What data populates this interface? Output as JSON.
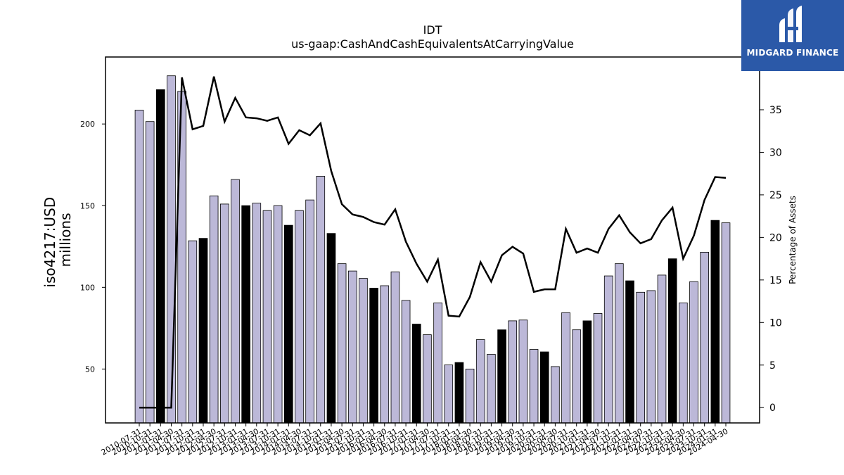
{
  "chart_data": {
    "type": "bar",
    "title": "IDT",
    "subtitle": "us-gaap:CashAndCashEquivalentsAtCarryingValue",
    "ylabel": "iso4217:USD\nmillions",
    "y2label": "Percentage of Assets",
    "ylim": [
      17,
      241
    ],
    "y2lim": [
      -1.8,
      41.2
    ],
    "yticks": [
      50,
      100,
      150,
      200
    ],
    "y2ticks": [
      0,
      5,
      10,
      15,
      20,
      25,
      30,
      35
    ],
    "grid": false,
    "colors": {
      "bar_default": "#bcb8d8",
      "bar_highlight": "#000000",
      "line": "#000000"
    },
    "categories": [
      "2010-07-31",
      "2010-10-31",
      "2011-01-31",
      "2011-04-30",
      "2011-07-31",
      "2011-10-31",
      "2012-01-31",
      "2012-04-30",
      "2012-07-31",
      "2012-10-31",
      "2013-01-31",
      "2013-04-30",
      "2013-07-31",
      "2013-10-31",
      "2014-01-31",
      "2014-04-30",
      "2014-07-31",
      "2014-10-31",
      "2015-01-31",
      "2015-04-30",
      "2015-07-31",
      "2015-10-31",
      "2016-01-31",
      "2016-04-30",
      "2016-07-31",
      "2016-10-31",
      "2017-01-31",
      "2017-04-30",
      "2017-07-31",
      "2017-10-31",
      "2018-01-31",
      "2018-04-30",
      "2018-07-31",
      "2018-10-31",
      "2019-01-31",
      "2019-04-30",
      "2019-07-31",
      "2019-10-31",
      "2020-01-31",
      "2020-04-30",
      "2020-07-31",
      "2020-10-31",
      "2021-01-31",
      "2021-04-30",
      "2021-07-31",
      "2021-10-31",
      "2022-01-31",
      "2022-04-30",
      "2022-07-31",
      "2022-10-31",
      "2023-01-31",
      "2023-04-30",
      "2023-07-31",
      "2023-10-31",
      "2024-01-31",
      "2024-04-30"
    ],
    "xtick_labels_visible": [
      "2010-07-31",
      "2010-10-31",
      "2011-01-31",
      "2011-04-30",
      "2011-07-31",
      "2011-10-31",
      "2012-01-31",
      "2012-04-30",
      "2012-07-31",
      "2012-10-31",
      "2013-01-31",
      "2013-04-30",
      "2013-07-31",
      "2013-10-31",
      "2014-01-31",
      "2014-04-30",
      "2014-07-31",
      "2014-10-31",
      "2015-01-31",
      "2015-04-30",
      "2015-07-31",
      "2015-10-31",
      "2016-01-31",
      "2016-04-30",
      "2016-07-31",
      "2016-10-31",
      "2017-01-31",
      "2017-04-30",
      "2017-07-31",
      "2017-10-31",
      "2018-01-31",
      "2018-04-30",
      "2018-07-31",
      "2018-10-31",
      "2019-01-31",
      "2019-04-30",
      "2019-07-31",
      "2019-10-31",
      "2020-01-31",
      "2020-04-30",
      "2020-07-31",
      "2020-10-31",
      "2021-01-31",
      "2021-04-30",
      "2021-07-31",
      "2021-10-31",
      "2022-01-31",
      "2022-04-30",
      "2022-07-31",
      "2022-10-31",
      "2023-01-31",
      "2023-04-30",
      "2023-07-31",
      "2023-10-31",
      "2024-01-31",
      "2024-04-30"
    ],
    "bar_values": [
      208.5,
      201.5,
      221.0,
      229.5,
      220.0,
      128.5,
      130.0,
      156.0,
      151.0,
      166.0,
      150.0,
      151.5,
      147.0,
      150.0,
      138.0,
      147.0,
      153.5,
      168.0,
      133.0,
      114.5,
      110.0,
      105.5,
      99.5,
      101.0,
      109.5,
      92.0,
      77.5,
      71.0,
      90.5,
      52.5,
      54.0,
      50.0,
      68.0,
      59.0,
      74.0,
      79.5,
      80.0,
      62.0,
      60.5,
      51.5,
      84.5,
      74.0,
      79.5,
      84.0,
      107.0,
      114.5,
      104.0,
      97.0,
      98.0,
      107.5,
      117.5,
      90.5,
      103.5,
      121.5,
      141.0,
      139.5
    ],
    "bar_highlight": [
      false,
      false,
      true,
      false,
      false,
      false,
      true,
      false,
      false,
      false,
      true,
      false,
      false,
      false,
      true,
      false,
      false,
      false,
      true,
      false,
      false,
      false,
      true,
      false,
      false,
      false,
      true,
      false,
      false,
      false,
      true,
      false,
      false,
      false,
      true,
      false,
      false,
      false,
      true,
      false,
      false,
      false,
      true,
      false,
      false,
      false,
      true,
      false,
      false,
      false,
      true,
      false,
      false,
      false,
      true,
      false
    ],
    "series": [
      {
        "name": "Percentage of Assets",
        "axis": "right",
        "values": [
          0.0,
          0.0,
          0.0,
          0.0,
          38.8,
          32.7,
          33.1,
          38.9,
          33.6,
          36.4,
          34.1,
          34.0,
          33.7,
          34.1,
          31.0,
          32.6,
          32.0,
          33.4,
          27.8,
          23.9,
          22.7,
          22.4,
          21.8,
          21.5,
          23.3,
          19.5,
          16.9,
          14.8,
          17.4,
          10.8,
          10.7,
          13.0,
          17.1,
          14.8,
          17.9,
          18.9,
          18.1,
          13.6,
          13.9,
          13.9,
          21.0,
          18.2,
          18.7,
          18.2,
          21.0,
          22.6,
          20.6,
          19.3,
          19.8,
          22.0,
          23.5,
          17.5,
          20.2,
          24.4,
          27.1,
          27.0
        ]
      }
    ]
  },
  "logo": {
    "text": "MIDGARD FINANCE"
  }
}
